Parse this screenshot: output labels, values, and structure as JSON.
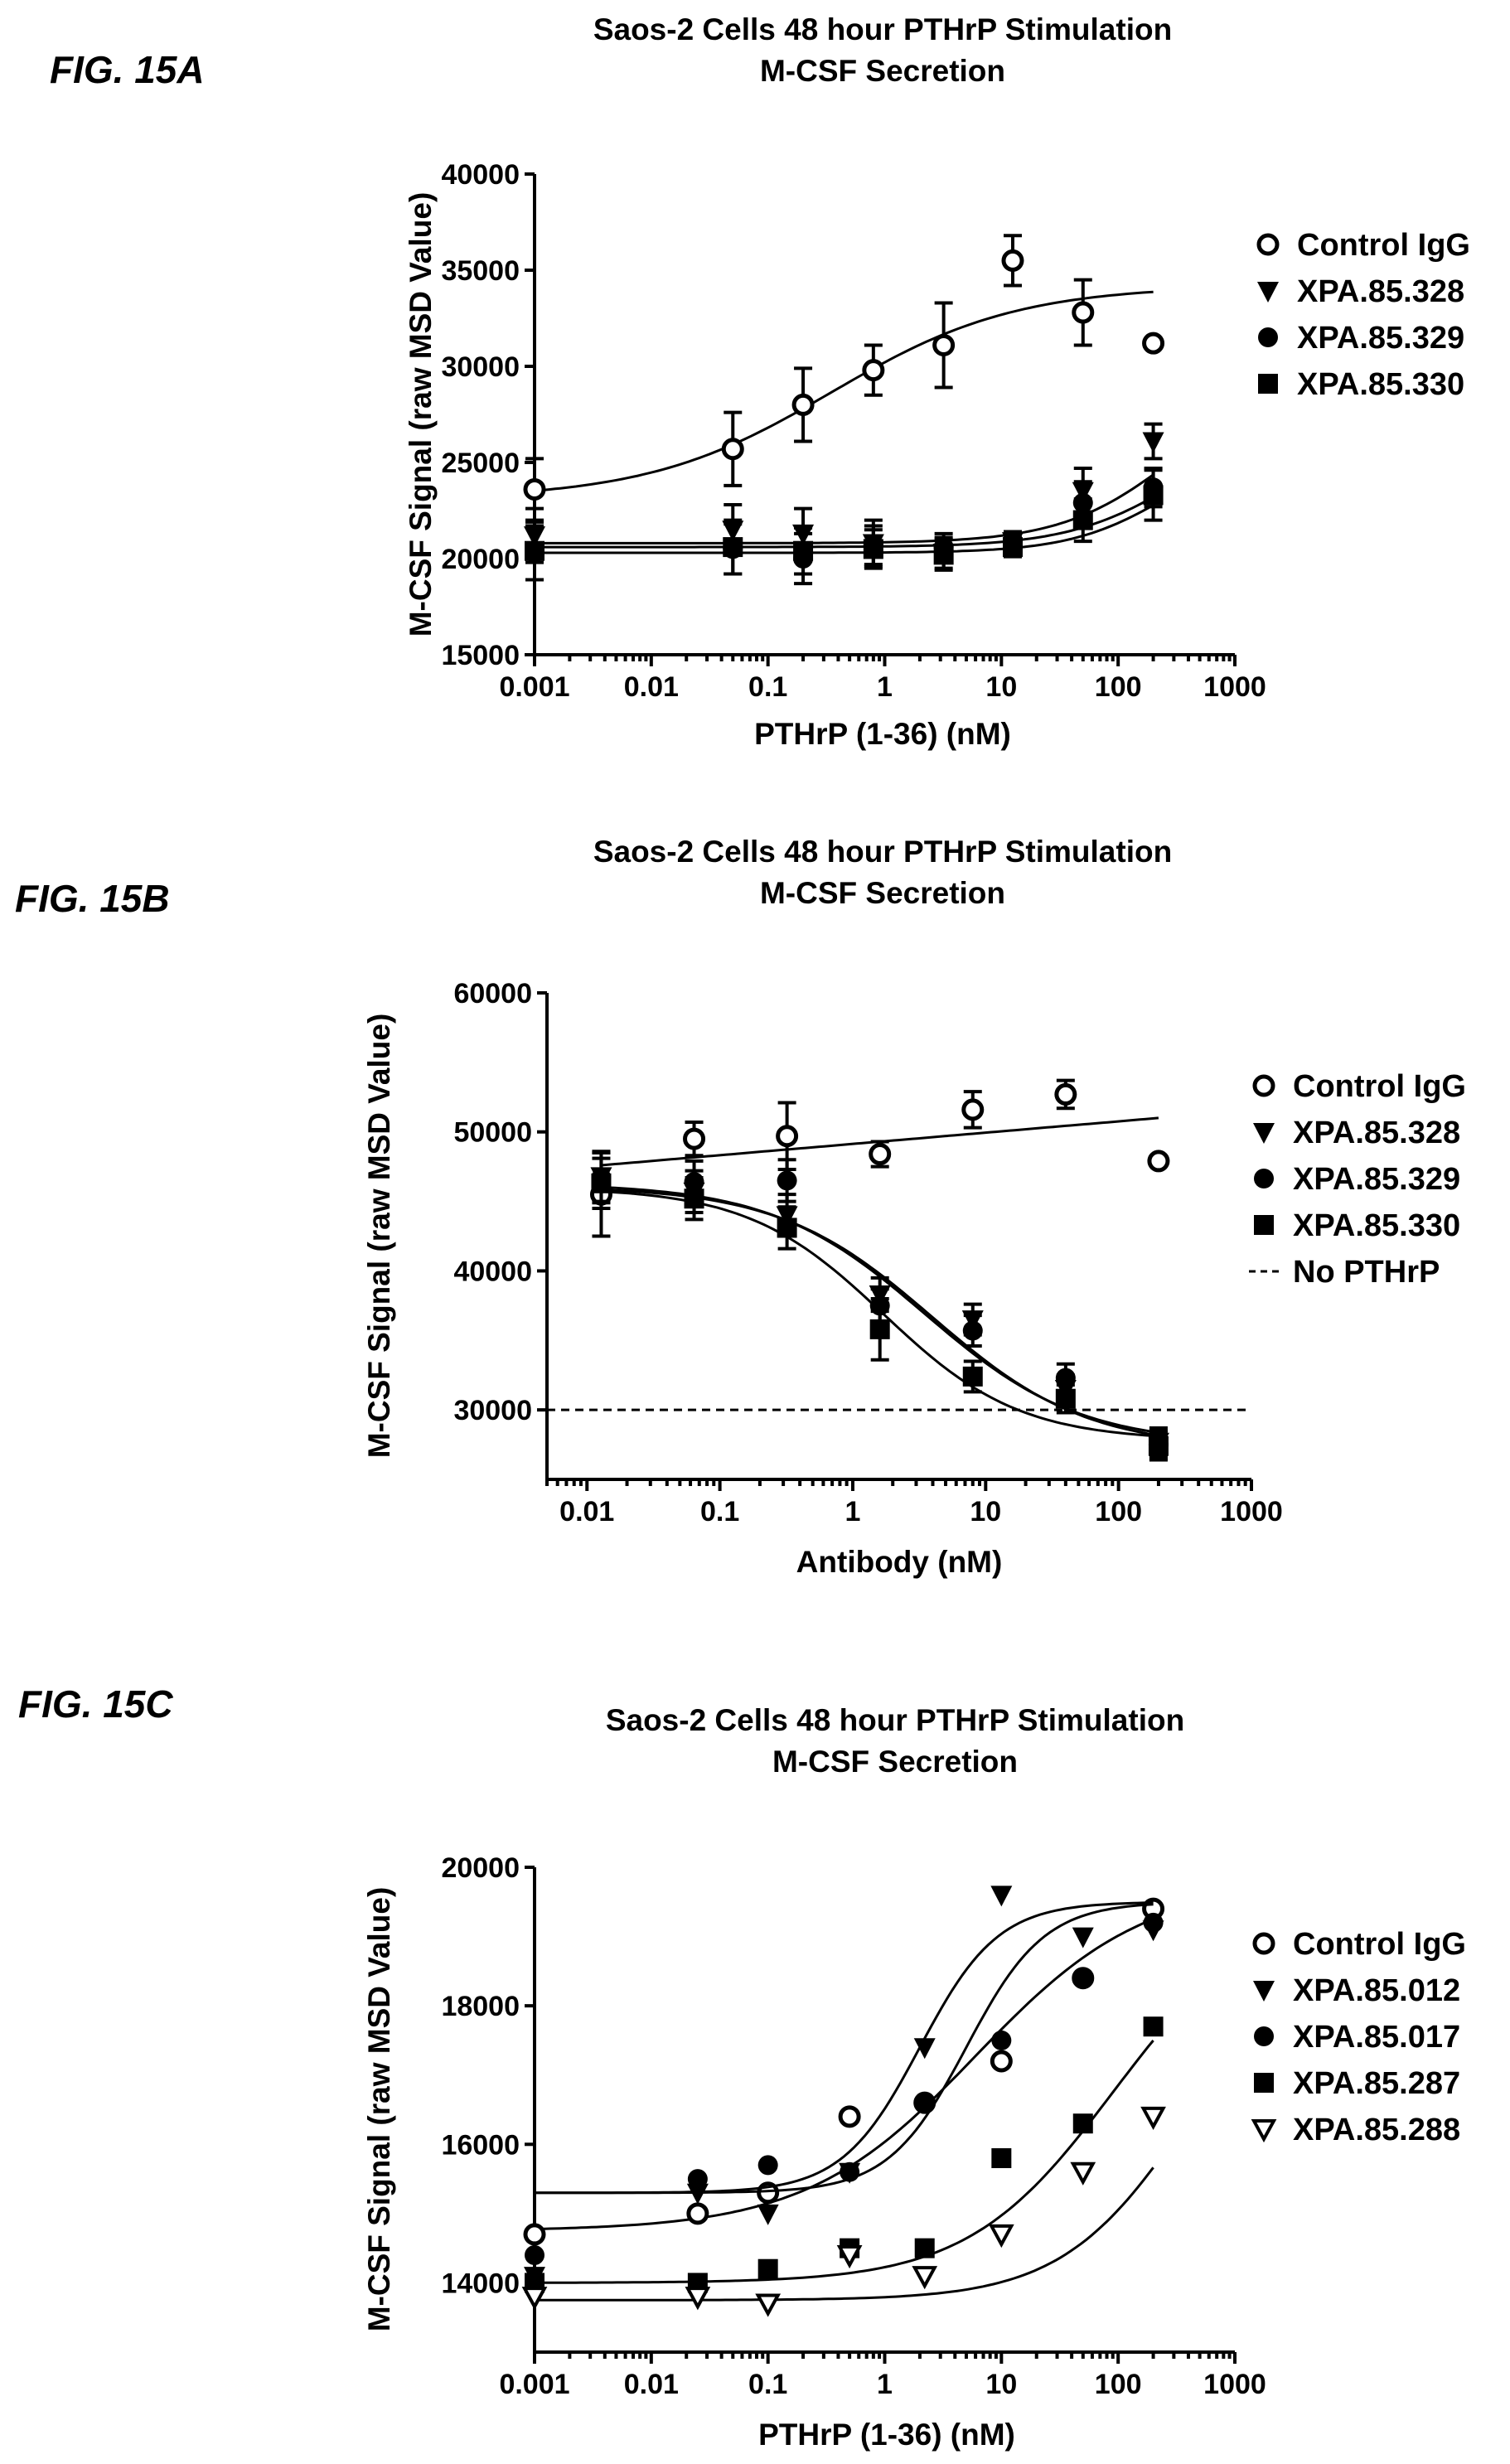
{
  "chart_data": [
    {
      "type": "scatter",
      "figure_label": "FIG. 15A",
      "title": "Saos-2 Cells 48 hour PTHrP Stimulation",
      "subtitle": "M-CSF Secretion",
      "xlabel": "PTHrP (1-36) (nM)",
      "ylabel": "M-CSF Signal (raw MSD Value)",
      "xscale": "log",
      "xlim": [
        0.001,
        1000
      ],
      "ylim": [
        15000,
        40000
      ],
      "xticks": [
        "0.001",
        "0.01",
        "0.1",
        "1",
        "10",
        "100",
        "1000"
      ],
      "yticks": [
        "15000",
        "20000",
        "25000",
        "30000",
        "35000",
        "40000"
      ],
      "legend_position": "right",
      "series": [
        {
          "name": "Control IgG",
          "marker": "circle-open",
          "x": [
            0.001,
            0.05,
            0.2,
            0.8,
            3.2,
            12.5,
            50,
            200
          ],
          "y": [
            23600,
            25700,
            28000,
            29800,
            31100,
            35500,
            32800,
            31200
          ],
          "err": [
            1600,
            1900,
            1900,
            1300,
            2200,
            1300,
            1700,
            0
          ],
          "fit": {
            "bottom": 23100,
            "top": 34200,
            "ec50": 0.35,
            "hill": 0.55
          }
        },
        {
          "name": "XPA.85.328",
          "marker": "triangle-down-filled",
          "x": [
            0.001,
            0.05,
            0.2,
            0.8,
            3.2,
            12.5,
            50,
            200
          ],
          "y": [
            21200,
            21500,
            21300,
            20800,
            20300,
            20900,
            23500,
            26100
          ],
          "err": [
            1400,
            1300,
            1300,
            1200,
            800,
            500,
            1200,
            900
          ],
          "fit": {
            "bottom": 20800,
            "top": 29500,
            "ec50": 300,
            "hill": 0.9
          }
        },
        {
          "name": "XPA.85.329",
          "marker": "circle-filled",
          "x": [
            0.001,
            0.05,
            0.2,
            0.8,
            3.2,
            12.5,
            50,
            200
          ],
          "y": [
            20300,
            20500,
            20000,
            20700,
            20600,
            20800,
            22900,
            23700
          ],
          "err": [
            1400,
            1300,
            1300,
            1000,
            700,
            500,
            1100,
            1000
          ],
          "fit": {
            "bottom": 20600,
            "top": 27500,
            "ec50": 350,
            "hill": 0.9
          }
        },
        {
          "name": "XPA.85.330",
          "marker": "square-filled",
          "x": [
            0.001,
            0.05,
            0.2,
            0.8,
            3.2,
            12.5,
            50,
            200
          ],
          "y": [
            20400,
            20600,
            20400,
            20500,
            20200,
            20600,
            22000,
            23300
          ],
          "err": [
            1500,
            1400,
            1200,
            1000,
            800,
            500,
            1100,
            1300
          ],
          "fit": {
            "bottom": 20300,
            "top": 26500,
            "ec50": 300,
            "hill": 1.0
          }
        }
      ]
    },
    {
      "type": "scatter",
      "figure_label": "FIG. 15B",
      "title": "Saos-2 Cells 48 hour PTHrP Stimulation",
      "subtitle": "M-CSF Secretion",
      "xlabel": "Antibody (nM)",
      "ylabel": "M-CSF Signal (raw MSD Value)",
      "xscale": "log",
      "xlim": [
        0.005,
        1000
      ],
      "ylim": [
        25000,
        60000
      ],
      "xticks": [
        "0.01",
        "0.1",
        "1",
        "10",
        "100",
        "1000"
      ],
      "yticks": [
        "30000",
        "40000",
        "50000",
        "60000"
      ],
      "legend_position": "right",
      "reference_line": {
        "name": "No PTHrP",
        "y": 30000,
        "style": "dashed"
      },
      "series": [
        {
          "name": "Control IgG",
          "marker": "circle-open",
          "x": [
            0.0128,
            0.064,
            0.32,
            1.6,
            8,
            40,
            200
          ],
          "y": [
            45500,
            49500,
            49700,
            48400,
            51600,
            52700,
            47900
          ],
          "err": [
            3000,
            1200,
            2400,
            900,
            1300,
            1000,
            0
          ],
          "fit": {
            "type": "linear-log",
            "y_at_0.0128": 47600,
            "y_at_200": 51000
          }
        },
        {
          "name": "XPA.85.328",
          "marker": "triangle-down-filled",
          "x": [
            0.0128,
            0.064,
            0.32,
            1.6,
            8,
            40,
            200
          ],
          "y": [
            46800,
            45700,
            44000,
            38300,
            36500,
            31500,
            27700
          ],
          "err": [
            1800,
            1500,
            1500,
            1200,
            1100,
            1000,
            1000
          ],
          "fit": {
            "top": 46300,
            "bottom": 27500,
            "ic50": 3.5,
            "hill": 0.75
          }
        },
        {
          "name": "XPA.85.329",
          "marker": "circle-filled",
          "x": [
            0.0128,
            0.064,
            0.32,
            1.6,
            8,
            40,
            200
          ],
          "y": [
            46700,
            46400,
            46500,
            37500,
            35700,
            32300,
            27500
          ],
          "err": [
            1800,
            1500,
            1500,
            1200,
            1100,
            1000,
            1000
          ],
          "fit": {
            "top": 46100,
            "bottom": 27200,
            "ic50": 4.0,
            "hill": 0.75
          }
        },
        {
          "name": "XPA.85.330",
          "marker": "square-filled",
          "x": [
            0.0128,
            0.064,
            0.32,
            1.6,
            8,
            40,
            200
          ],
          "y": [
            46300,
            45200,
            43100,
            35800,
            32400,
            30800,
            27400
          ],
          "err": [
            1800,
            1500,
            1500,
            2200,
            1100,
            1000,
            1000
          ],
          "fit": {
            "top": 46000,
            "bottom": 27800,
            "ic50": 1.7,
            "hill": 0.85
          }
        }
      ]
    },
    {
      "type": "scatter",
      "figure_label": "FIG. 15C",
      "title": "Saos-2 Cells 48 hour PTHrP Stimulation",
      "subtitle": "M-CSF Secretion",
      "xlabel": "PTHrP (1-36) (nM)",
      "ylabel": "M-CSF Signal (raw MSD Value)",
      "xscale": "log",
      "xlim": [
        0.001,
        1000
      ],
      "ylim": [
        13000,
        20000
      ],
      "xticks": [
        "0.001",
        "0.01",
        "0.1",
        "1",
        "10",
        "100",
        "1000"
      ],
      "yticks": [
        "14000",
        "16000",
        "18000",
        "20000"
      ],
      "legend_position": "right",
      "series": [
        {
          "name": "Control IgG",
          "marker": "circle-open",
          "x": [
            0.001,
            0.025,
            0.1,
            0.5,
            2.2,
            10,
            50,
            200
          ],
          "y": [
            14700,
            15000,
            15300,
            16400,
            16600,
            17200,
            18400,
            19400
          ],
          "fit": {
            "bottom": 14750,
            "top": 19800,
            "ec50": 6,
            "hill": 0.6
          }
        },
        {
          "name": "XPA.85.012",
          "marker": "triangle-down-filled",
          "x": [
            0.001,
            0.025,
            0.1,
            0.5,
            2.2,
            10,
            50,
            200
          ],
          "y": [
            14100,
            15300,
            15000,
            15600,
            17400,
            19600,
            19000,
            19100
          ],
          "fit": {
            "bottom": 15300,
            "top": 19500,
            "ec50": 2.0,
            "hill": 1.3
          }
        },
        {
          "name": "XPA.85.017",
          "marker": "circle-filled",
          "x": [
            0.001,
            0.025,
            0.1,
            0.5,
            2.2,
            10,
            50,
            200
          ],
          "y": [
            14400,
            15500,
            15700,
            15600,
            16600,
            17500,
            18400,
            19200
          ],
          "fit": {
            "bottom": 15300,
            "top": 19500,
            "ec50": 5.0,
            "hill": 1.3
          }
        },
        {
          "name": "XPA.85.287",
          "marker": "square-filled",
          "x": [
            0.001,
            0.025,
            0.1,
            0.5,
            2.2,
            10,
            50,
            200
          ],
          "y": [
            14000,
            14000,
            14200,
            14500,
            14500,
            15800,
            16300,
            17700
          ],
          "fit": {
            "bottom": 14000,
            "top": 19500,
            "ec50": 90,
            "hill": 0.7
          }
        },
        {
          "name": "XPA.85.288",
          "marker": "triangle-down-open",
          "x": [
            0.001,
            0.025,
            0.1,
            0.5,
            2.2,
            10,
            50,
            200
          ],
          "y": [
            13800,
            13800,
            13700,
            14400,
            14100,
            14700,
            15600,
            16400
          ],
          "fit": {
            "bottom": 13750,
            "top": 19000,
            "ec50": 400,
            "hill": 0.8
          }
        }
      ]
    }
  ]
}
